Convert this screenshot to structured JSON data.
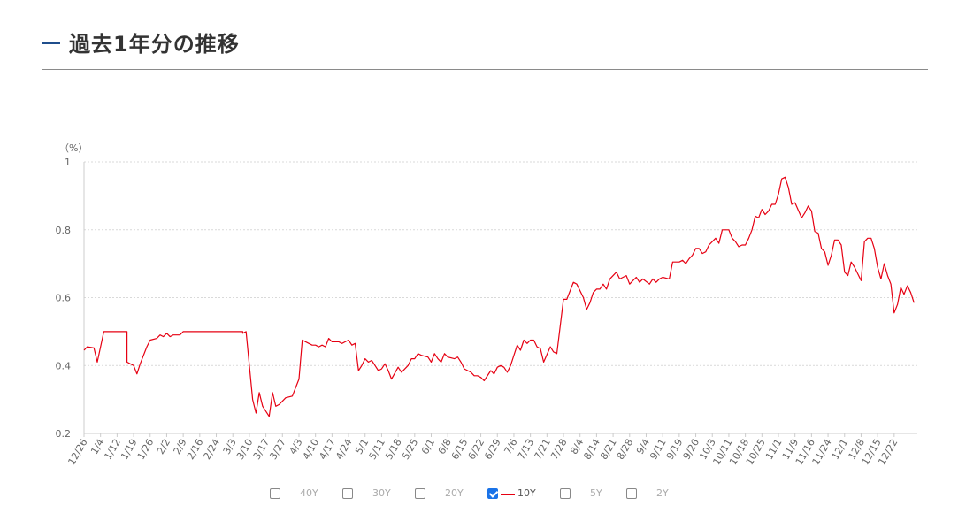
{
  "header": {
    "title": "過去1年分の推移"
  },
  "chart_data": {
    "type": "line",
    "yunit": "（%）",
    "ylim": [
      0.2,
      1.0
    ],
    "yticks": [
      "1",
      "0.8",
      "0.6",
      "0.4",
      "0.2"
    ],
    "ytick_values": [
      1.0,
      0.8,
      0.6,
      0.4,
      0.2
    ],
    "grid": true,
    "legend_placement": "bottom-center",
    "xtick_labels": [
      "12/26",
      "1/4",
      "1/12",
      "1/19",
      "1/26",
      "2/2",
      "2/9",
      "2/16",
      "2/24",
      "3/3",
      "3/10",
      "3/17",
      "3/27",
      "4/3",
      "4/10",
      "4/17",
      "4/24",
      "5/1",
      "5/11",
      "5/18",
      "5/25",
      "6/1",
      "6/8",
      "6/15",
      "6/22",
      "6/29",
      "7/6",
      "7/13",
      "7/21",
      "7/28",
      "8/4",
      "8/14",
      "8/21",
      "8/28",
      "9/4",
      "9/11",
      "9/19",
      "9/26",
      "10/3",
      "10/11",
      "10/18",
      "10/25",
      "11/1",
      "11/9",
      "11/16",
      "11/24",
      "12/1",
      "12/8",
      "12/15",
      "12/22"
    ],
    "xtick_positions": [
      0,
      5,
      10,
      15,
      20,
      25,
      30,
      35,
      40,
      45,
      50,
      55,
      60,
      65,
      70,
      75,
      80,
      85,
      90,
      95,
      100,
      105,
      110,
      115,
      120,
      125,
      130,
      135,
      140,
      145,
      150,
      155,
      160,
      165,
      170,
      175,
      180,
      185,
      190,
      195,
      200,
      205,
      210,
      215,
      220,
      225,
      230,
      235,
      240,
      245
    ],
    "x_count": 248,
    "series": [
      {
        "name": "10Y",
        "color": "#e60012",
        "points": [
          [
            0,
            0.445
          ],
          [
            1,
            0.455
          ],
          [
            3,
            0.452
          ],
          [
            4,
            0.41
          ],
          [
            6,
            0.5
          ],
          [
            13,
            0.5
          ],
          [
            13,
            0.41
          ],
          [
            15,
            0.4
          ],
          [
            16,
            0.375
          ],
          [
            17,
            0.405
          ],
          [
            19,
            0.455
          ],
          [
            20,
            0.475
          ],
          [
            22,
            0.48
          ],
          [
            23,
            0.49
          ],
          [
            24,
            0.485
          ],
          [
            25,
            0.495
          ],
          [
            26,
            0.485
          ],
          [
            27,
            0.49
          ],
          [
            29,
            0.49
          ],
          [
            30,
            0.5
          ],
          [
            48,
            0.5
          ],
          [
            48,
            0.495
          ],
          [
            49,
            0.5
          ],
          [
            51,
            0.3
          ],
          [
            52,
            0.26
          ],
          [
            53,
            0.32
          ],
          [
            54,
            0.28
          ],
          [
            56,
            0.25
          ],
          [
            57,
            0.32
          ],
          [
            58,
            0.28
          ],
          [
            59,
            0.285
          ],
          [
            61,
            0.305
          ],
          [
            63,
            0.31
          ],
          [
            65,
            0.36
          ],
          [
            66,
            0.475
          ],
          [
            68,
            0.465
          ],
          [
            69,
            0.46
          ],
          [
            70,
            0.46
          ],
          [
            71,
            0.455
          ],
          [
            72,
            0.46
          ],
          [
            73,
            0.455
          ],
          [
            74,
            0.48
          ],
          [
            75,
            0.47
          ],
          [
            77,
            0.47
          ],
          [
            78,
            0.465
          ],
          [
            79,
            0.47
          ],
          [
            80,
            0.475
          ],
          [
            81,
            0.46
          ],
          [
            82,
            0.465
          ],
          [
            83,
            0.385
          ],
          [
            84,
            0.4
          ],
          [
            85,
            0.42
          ],
          [
            86,
            0.41
          ],
          [
            87,
            0.415
          ],
          [
            88,
            0.4
          ],
          [
            89,
            0.385
          ],
          [
            90,
            0.39
          ],
          [
            91,
            0.405
          ],
          [
            92,
            0.385
          ],
          [
            93,
            0.36
          ],
          [
            95,
            0.395
          ],
          [
            96,
            0.38
          ],
          [
            98,
            0.4
          ],
          [
            99,
            0.42
          ],
          [
            100,
            0.42
          ],
          [
            101,
            0.435
          ],
          [
            102,
            0.43
          ],
          [
            104,
            0.425
          ],
          [
            105,
            0.41
          ],
          [
            106,
            0.435
          ],
          [
            107,
            0.42
          ],
          [
            108,
            0.41
          ],
          [
            109,
            0.435
          ],
          [
            110,
            0.425
          ],
          [
            112,
            0.42
          ],
          [
            113,
            0.425
          ],
          [
            114,
            0.41
          ],
          [
            115,
            0.39
          ],
          [
            117,
            0.38
          ],
          [
            118,
            0.37
          ],
          [
            119,
            0.37
          ],
          [
            120,
            0.365
          ],
          [
            121,
            0.355
          ],
          [
            123,
            0.385
          ],
          [
            124,
            0.375
          ],
          [
            125,
            0.395
          ],
          [
            126,
            0.4
          ],
          [
            127,
            0.395
          ],
          [
            128,
            0.38
          ],
          [
            129,
            0.4
          ],
          [
            131,
            0.46
          ],
          [
            132,
            0.445
          ],
          [
            133,
            0.475
          ],
          [
            134,
            0.465
          ],
          [
            135,
            0.475
          ],
          [
            136,
            0.475
          ],
          [
            137,
            0.455
          ],
          [
            138,
            0.45
          ],
          [
            139,
            0.41
          ],
          [
            141,
            0.455
          ],
          [
            142,
            0.44
          ],
          [
            143,
            0.435
          ],
          [
            145,
            0.595
          ],
          [
            146,
            0.595
          ],
          [
            148,
            0.645
          ],
          [
            149,
            0.64
          ],
          [
            151,
            0.6
          ],
          [
            152,
            0.565
          ],
          [
            153,
            0.585
          ],
          [
            154,
            0.615
          ],
          [
            155,
            0.625
          ],
          [
            156,
            0.625
          ],
          [
            157,
            0.64
          ],
          [
            158,
            0.625
          ],
          [
            159,
            0.655
          ],
          [
            161,
            0.675
          ],
          [
            162,
            0.655
          ],
          [
            164,
            0.665
          ],
          [
            165,
            0.64
          ],
          [
            166,
            0.65
          ],
          [
            167,
            0.66
          ],
          [
            168,
            0.645
          ],
          [
            169,
            0.655
          ],
          [
            171,
            0.64
          ],
          [
            172,
            0.655
          ],
          [
            173,
            0.645
          ],
          [
            174,
            0.655
          ],
          [
            175,
            0.66
          ],
          [
            177,
            0.655
          ],
          [
            178,
            0.705
          ],
          [
            179,
            0.705
          ],
          [
            180,
            0.705
          ],
          [
            181,
            0.71
          ],
          [
            182,
            0.7
          ],
          [
            183,
            0.715
          ],
          [
            184,
            0.725
          ],
          [
            185,
            0.745
          ],
          [
            186,
            0.745
          ],
          [
            187,
            0.73
          ],
          [
            188,
            0.735
          ],
          [
            189,
            0.755
          ],
          [
            190,
            0.765
          ],
          [
            191,
            0.775
          ],
          [
            192,
            0.76
          ],
          [
            193,
            0.8
          ],
          [
            195,
            0.8
          ],
          [
            196,
            0.775
          ],
          [
            197,
            0.765
          ],
          [
            198,
            0.75
          ],
          [
            199,
            0.755
          ],
          [
            200,
            0.755
          ],
          [
            201,
            0.775
          ],
          [
            202,
            0.8
          ],
          [
            203,
            0.84
          ],
          [
            204,
            0.835
          ],
          [
            205,
            0.86
          ],
          [
            206,
            0.845
          ],
          [
            207,
            0.855
          ],
          [
            208,
            0.875
          ],
          [
            209,
            0.875
          ],
          [
            210,
            0.905
          ],
          [
            211,
            0.95
          ],
          [
            212,
            0.955
          ],
          [
            213,
            0.925
          ],
          [
            214,
            0.875
          ],
          [
            215,
            0.88
          ],
          [
            217,
            0.835
          ],
          [
            218,
            0.85
          ],
          [
            219,
            0.87
          ],
          [
            220,
            0.855
          ],
          [
            221,
            0.795
          ],
          [
            222,
            0.79
          ],
          [
            223,
            0.745
          ],
          [
            224,
            0.735
          ],
          [
            225,
            0.695
          ],
          [
            226,
            0.725
          ],
          [
            227,
            0.77
          ],
          [
            228,
            0.77
          ],
          [
            229,
            0.755
          ],
          [
            230,
            0.675
          ],
          [
            231,
            0.665
          ],
          [
            232,
            0.705
          ],
          [
            233,
            0.69
          ],
          [
            234,
            0.67
          ],
          [
            235,
            0.65
          ],
          [
            236,
            0.765
          ],
          [
            237,
            0.775
          ],
          [
            238,
            0.775
          ],
          [
            239,
            0.745
          ],
          [
            240,
            0.69
          ],
          [
            241,
            0.655
          ],
          [
            242,
            0.7
          ],
          [
            243,
            0.665
          ],
          [
            244,
            0.64
          ],
          [
            245,
            0.555
          ],
          [
            246,
            0.58
          ],
          [
            247,
            0.63
          ],
          [
            248,
            0.61
          ],
          [
            249,
            0.635
          ],
          [
            250,
            0.615
          ],
          [
            251,
            0.585
          ]
        ]
      }
    ]
  },
  "legend": {
    "items": [
      {
        "label": "40Y",
        "checked": false
      },
      {
        "label": "30Y",
        "checked": false
      },
      {
        "label": "20Y",
        "checked": false
      },
      {
        "label": "10Y",
        "checked": true
      },
      {
        "label": "5Y",
        "checked": false
      },
      {
        "label": "2Y",
        "checked": false
      }
    ]
  }
}
